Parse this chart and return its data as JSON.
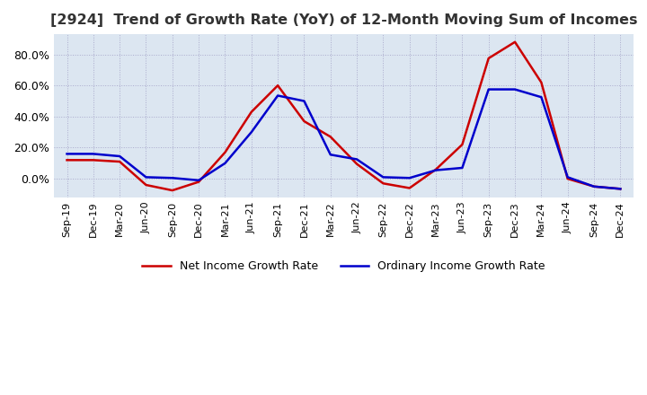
{
  "title": "[2924]  Trend of Growth Rate (YoY) of 12-Month Moving Sum of Incomes",
  "title_fontsize": 11.5,
  "x_labels": [
    "Sep-19",
    "Dec-19",
    "Mar-20",
    "Jun-20",
    "Sep-20",
    "Dec-20",
    "Mar-21",
    "Jun-21",
    "Sep-21",
    "Dec-21",
    "Mar-22",
    "Jun-22",
    "Sep-22",
    "Dec-22",
    "Mar-23",
    "Jun-23",
    "Sep-23",
    "Dec-23",
    "Mar-24",
    "Jun-24",
    "Sep-24",
    "Dec-24"
  ],
  "ordinary_income": [
    0.16,
    0.16,
    0.145,
    0.01,
    0.005,
    -0.01,
    0.1,
    0.3,
    0.535,
    0.5,
    0.155,
    0.125,
    0.01,
    0.005,
    0.055,
    0.07,
    0.575,
    0.575,
    0.525,
    0.01,
    -0.05,
    -0.065
  ],
  "net_income": [
    0.12,
    0.12,
    0.11,
    -0.04,
    -0.075,
    -0.02,
    0.17,
    0.43,
    0.6,
    0.37,
    0.27,
    0.095,
    -0.03,
    -0.06,
    0.06,
    0.22,
    0.775,
    0.88,
    0.62,
    0.0,
    -0.05,
    -0.065
  ],
  "ordinary_color": "#0000cc",
  "net_color": "#cc0000",
  "ylim_min": -0.12,
  "ylim_max": 0.93,
  "background_color": "#ffffff",
  "plot_bg_color": "#dce6f1",
  "grid_color": "#aaaacc",
  "legend_ordinary": "Ordinary Income Growth Rate",
  "legend_net": "Net Income Growth Rate"
}
